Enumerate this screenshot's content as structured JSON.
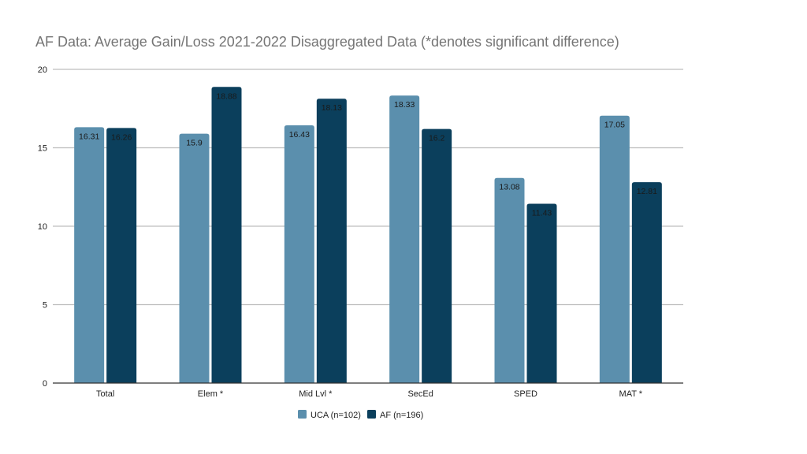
{
  "chart_data": {
    "type": "bar",
    "title": "AF Data: Average Gain/Loss 2021-2022 Disaggregated Data (*denotes significant difference)",
    "categories": [
      "Total",
      "Elem *",
      "Mid Lvl *",
      "SecEd",
      "SPED",
      "MAT *"
    ],
    "series": [
      {
        "name": "UCA (n=102)",
        "color": "#5b8fad",
        "values": [
          16.31,
          15.9,
          16.43,
          18.33,
          13.08,
          17.05
        ]
      },
      {
        "name": "AF (n=196)",
        "color": "#0b3f5c",
        "values": [
          16.26,
          18.88,
          18.13,
          16.2,
          11.43,
          12.81
        ]
      }
    ],
    "ylim": [
      0,
      20
    ],
    "yticks": [
      0,
      5,
      10,
      15,
      20
    ],
    "xlabel": "",
    "ylabel": "",
    "grid": true,
    "legend_position": "bottom"
  }
}
